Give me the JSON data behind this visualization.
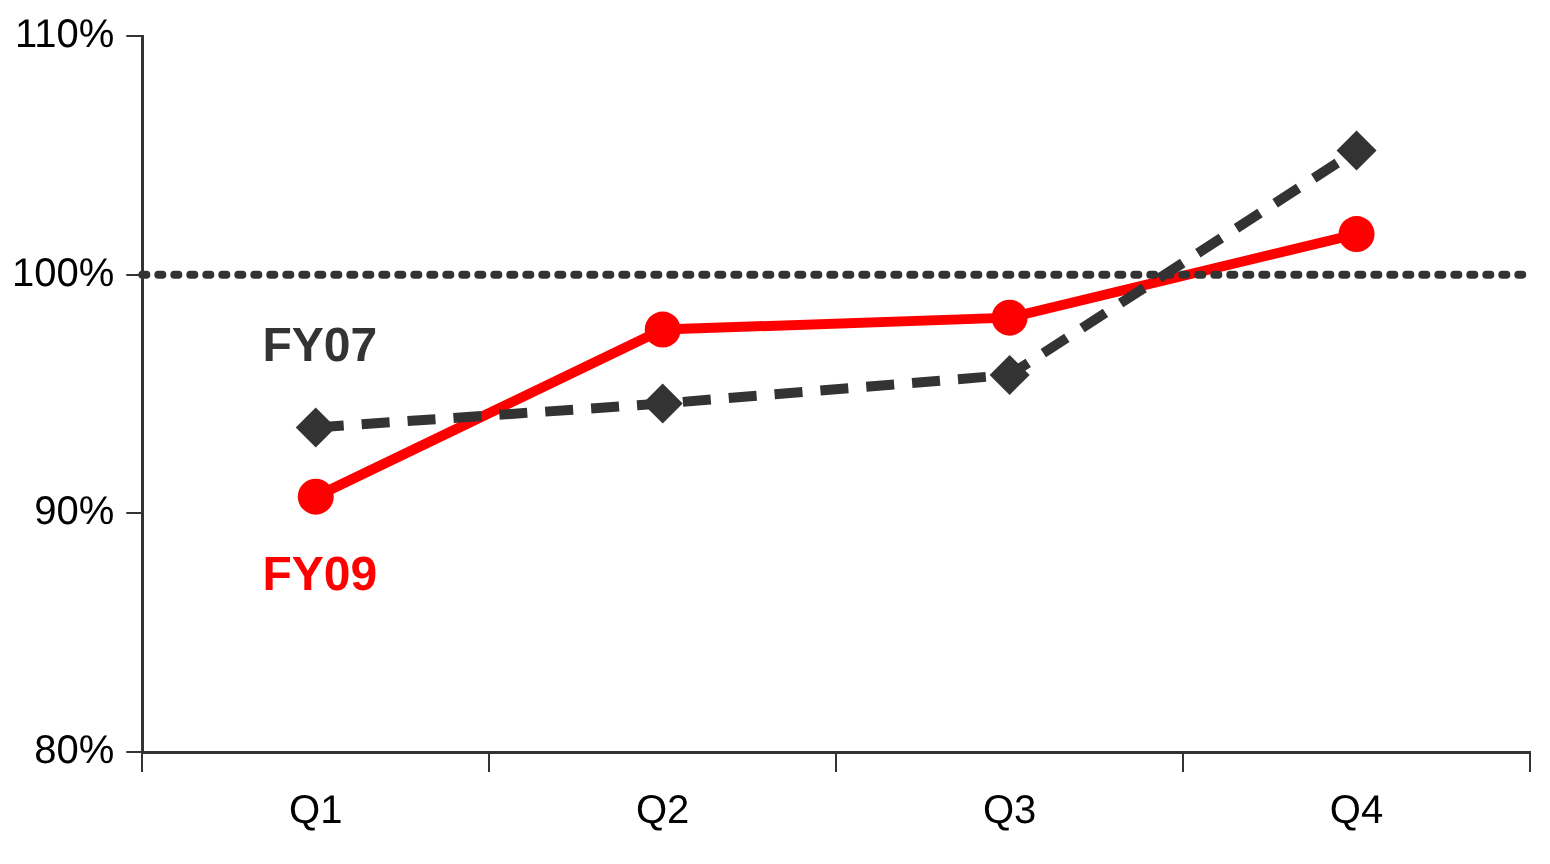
{
  "chart_data": {
    "type": "line",
    "categories": [
      "Q1",
      "Q2",
      "Q3",
      "Q4"
    ],
    "series": [
      {
        "name": "FY07",
        "color": "#333333",
        "values": [
          93.6,
          94.6,
          95.8,
          105.2
        ],
        "marker": "diamond",
        "line_style": "dashed"
      },
      {
        "name": "FY09",
        "color": "#ff0000",
        "values": [
          90.7,
          97.7,
          98.2,
          101.7
        ],
        "marker": "circle",
        "line_style": "solid"
      }
    ],
    "ylim": [
      80,
      110
    ],
    "yticks": [
      {
        "value": 80,
        "label": "80%"
      },
      {
        "value": 90,
        "label": "90%"
      },
      {
        "value": 100,
        "label": "100%"
      },
      {
        "value": 110,
        "label": "110%"
      }
    ],
    "ref_lines": [
      {
        "axis": "y",
        "value": 100,
        "color": "#333333",
        "line_style": "dotted"
      }
    ],
    "grid": false,
    "legend": false
  }
}
